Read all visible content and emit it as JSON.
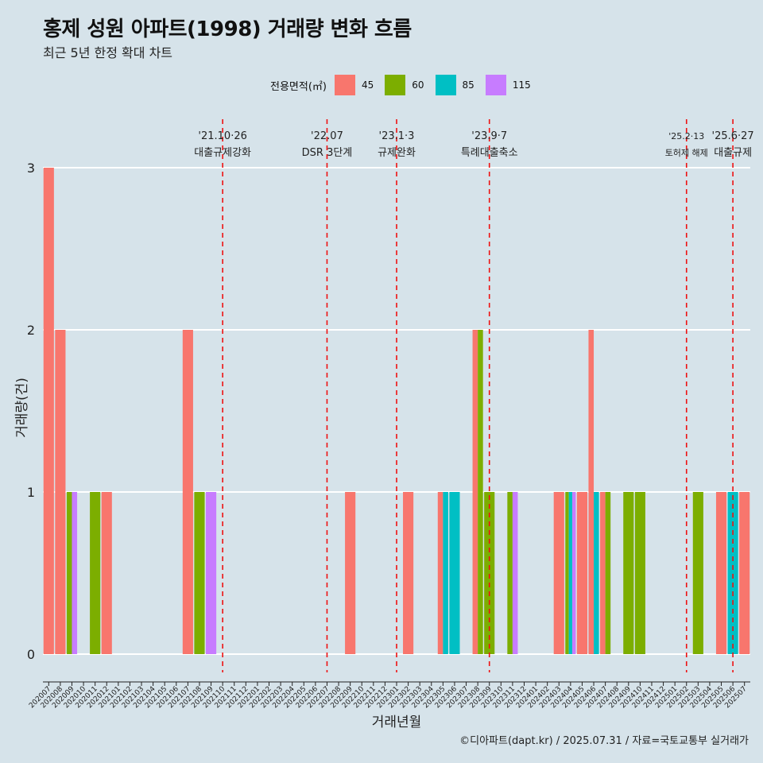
{
  "title": "홍제 성원 아파트(1998) 거래량 변화 흐름",
  "subtitle": "최근 5년 한정 확대 차트",
  "caption": "©디아파트(dapt.kr) / 2025.07.31 / 자료=국토교통부 실거래가",
  "legend": {
    "title": "전용면적(㎡)",
    "items": [
      {
        "label": "45",
        "color": "#F8766D"
      },
      {
        "label": "60",
        "color": "#7CAE00"
      },
      {
        "label": "85",
        "color": "#00BFC4"
      },
      {
        "label": "115",
        "color": "#C77CFF"
      }
    ]
  },
  "chart_data": {
    "type": "bar",
    "xlabel": "거래년월",
    "ylabel": "거래량(건)",
    "ylim": [
      0,
      3
    ],
    "yticks": [
      0,
      1,
      2,
      3
    ],
    "grid": true,
    "legend_position": "top",
    "categories": [
      "202007",
      "202008",
      "202009",
      "202010",
      "202011",
      "202012",
      "202101",
      "202102",
      "202103",
      "202104",
      "202105",
      "202106",
      "202107",
      "202108",
      "202109",
      "202110",
      "202111",
      "202112",
      "202201",
      "202202",
      "202203",
      "202204",
      "202205",
      "202206",
      "202207",
      "202208",
      "202209",
      "202210",
      "202211",
      "202212",
      "202301",
      "202302",
      "202303",
      "202304",
      "202305",
      "202306",
      "202307",
      "202308",
      "202309",
      "202310",
      "202311",
      "202312",
      "202401",
      "202402",
      "202403",
      "202404",
      "202405",
      "202406",
      "202407",
      "202408",
      "202409",
      "202410",
      "202411",
      "202412",
      "202501",
      "202502",
      "202503",
      "202504",
      "202505",
      "202506",
      "202507"
    ],
    "series": [
      {
        "name": "45",
        "color": "#F8766D",
        "values": [
          3,
          2,
          0,
          0,
          0,
          1,
          0,
          0,
          0,
          0,
          0,
          0,
          2,
          0,
          0,
          0,
          0,
          0,
          0,
          0,
          0,
          0,
          0,
          0,
          0,
          0,
          1,
          0,
          0,
          0,
          0,
          1,
          0,
          0,
          1,
          0,
          0,
          2,
          0,
          0,
          0,
          0,
          0,
          0,
          1,
          0,
          1,
          2,
          1,
          0,
          0,
          0,
          0,
          0,
          0,
          0,
          0,
          0,
          1,
          0,
          1
        ]
      },
      {
        "name": "60",
        "color": "#7CAE00",
        "values": [
          0,
          0,
          1,
          0,
          1,
          0,
          0,
          0,
          0,
          0,
          0,
          0,
          0,
          1,
          0,
          0,
          0,
          0,
          0,
          0,
          0,
          0,
          0,
          0,
          0,
          0,
          0,
          0,
          0,
          0,
          0,
          0,
          0,
          0,
          0,
          0,
          0,
          2,
          1,
          0,
          1,
          0,
          0,
          0,
          0,
          1,
          0,
          0,
          1,
          0,
          1,
          1,
          0,
          0,
          0,
          0,
          1,
          0,
          0,
          0,
          0
        ]
      },
      {
        "name": "85",
        "color": "#00BFC4",
        "values": [
          0,
          0,
          0,
          0,
          0,
          0,
          0,
          0,
          0,
          0,
          0,
          0,
          0,
          0,
          0,
          0,
          0,
          0,
          0,
          0,
          0,
          0,
          0,
          0,
          0,
          0,
          0,
          0,
          0,
          0,
          0,
          0,
          0,
          0,
          1,
          1,
          0,
          0,
          0,
          0,
          0,
          0,
          0,
          0,
          0,
          1,
          0,
          1,
          0,
          0,
          0,
          0,
          0,
          0,
          0,
          0,
          0,
          0,
          0,
          1,
          0
        ]
      },
      {
        "name": "115",
        "color": "#C77CFF",
        "values": [
          0,
          0,
          1,
          0,
          0,
          0,
          0,
          0,
          0,
          0,
          0,
          0,
          0,
          0,
          1,
          0,
          0,
          0,
          0,
          0,
          0,
          0,
          0,
          0,
          0,
          0,
          0,
          0,
          0,
          0,
          0,
          0,
          0,
          0,
          0,
          0,
          0,
          0,
          0,
          0,
          1,
          0,
          0,
          0,
          0,
          1,
          0,
          0,
          0,
          0,
          0,
          0,
          0,
          0,
          0,
          0,
          0,
          0,
          0,
          0,
          0
        ]
      }
    ],
    "annotations": [
      {
        "x": "202110",
        "date": "'21.10·26",
        "label": "대출규제강화"
      },
      {
        "x": "202207",
        "date": "'22.07",
        "label": "DSR 3단계"
      },
      {
        "x": "202301",
        "date": "'23.1·3",
        "label": "규제완화"
      },
      {
        "x": "202309",
        "date": "'23.9·7",
        "label": "특례대출축소"
      },
      {
        "x": "202502",
        "date": "'25.2·13",
        "label": "토허제 해제"
      },
      {
        "x": "202506",
        "date": "'25.6·27",
        "label": "대출규제"
      }
    ]
  }
}
